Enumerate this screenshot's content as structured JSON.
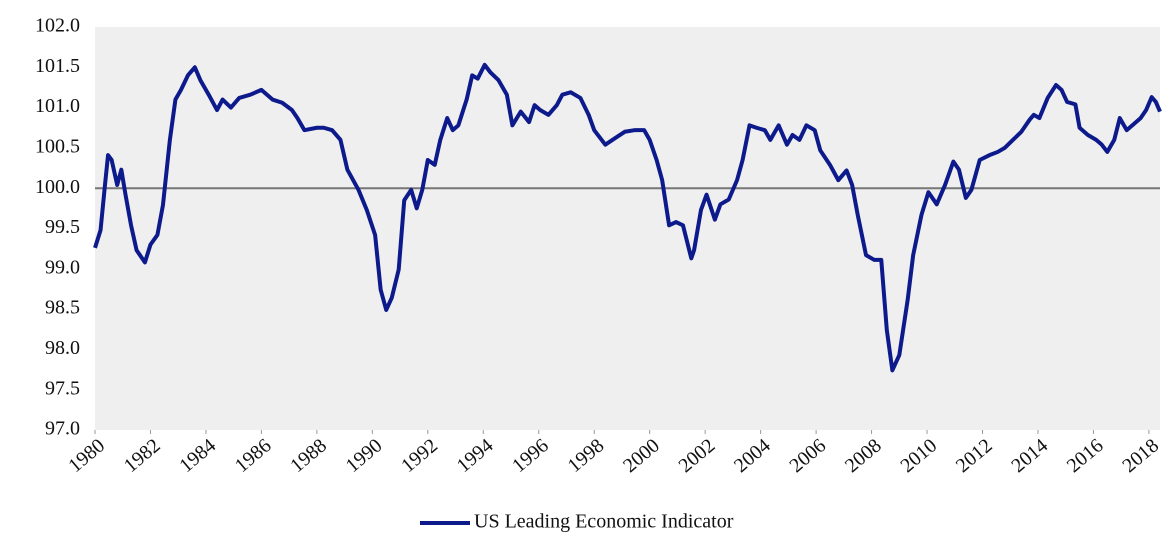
{
  "chart_data": {
    "type": "line",
    "xlim": [
      1980,
      2018.4
    ],
    "xticks": [
      1980,
      1982,
      1984,
      1986,
      1988,
      1990,
      1992,
      1994,
      1996,
      1998,
      2000,
      2002,
      2004,
      2006,
      2008,
      2010,
      2012,
      2014,
      2016,
      2018
    ],
    "ylim": [
      97,
      102
    ],
    "yticks": [
      {
        "value": 97,
        "label": "97.0"
      },
      {
        "value": 97.5,
        "label": "97.5"
      },
      {
        "value": 98,
        "label": "98.0"
      },
      {
        "value": 98.5,
        "label": "98.5"
      },
      {
        "value": 99,
        "label": "99.0"
      },
      {
        "value": 99.5,
        "label": "99.5"
      },
      {
        "value": 100,
        "label": "100.0"
      },
      {
        "value": 100.5,
        "label": "100.5"
      },
      {
        "value": 101,
        "label": "101.0"
      },
      {
        "value": 101.5,
        "label": "101.5"
      },
      {
        "value": 102,
        "label": "102.0"
      }
    ],
    "reference_line": 100,
    "legend": "bottom",
    "x": [
      1980.0,
      1980.2,
      1980.36,
      1980.47,
      1980.6,
      1980.8,
      1980.95,
      1981.1,
      1981.3,
      1981.5,
      1981.8,
      1982.0,
      1982.25,
      1982.45,
      1982.7,
      1982.9,
      1983.1,
      1983.35,
      1983.6,
      1983.8,
      1984.1,
      1984.4,
      1984.6,
      1984.9,
      1985.2,
      1985.6,
      1986.0,
      1986.4,
      1986.75,
      1987.1,
      1987.3,
      1987.55,
      1988.0,
      1988.25,
      1988.55,
      1988.85,
      1989.1,
      1989.5,
      1989.8,
      1990.1,
      1990.3,
      1990.5,
      1990.7,
      1990.95,
      1991.15,
      1991.4,
      1991.6,
      1991.8,
      1992.0,
      1992.25,
      1992.45,
      1992.7,
      1992.9,
      1993.1,
      1993.4,
      1993.6,
      1993.8,
      1994.05,
      1994.25,
      1994.55,
      1994.85,
      1995.05,
      1995.35,
      1995.65,
      1995.85,
      1996.05,
      1996.35,
      1996.65,
      1996.85,
      1997.15,
      1997.5,
      1997.8,
      1998.0,
      1998.4,
      1998.75,
      1999.1,
      1999.45,
      1999.8,
      2000.0,
      2000.25,
      2000.45,
      2000.7,
      2000.95,
      2001.2,
      2001.5,
      2001.6,
      2001.85,
      2002.05,
      2002.35,
      2002.55,
      2002.85,
      2003.15,
      2003.35,
      2003.6,
      2003.85,
      2004.15,
      2004.35,
      2004.65,
      2004.95,
      2005.15,
      2005.4,
      2005.65,
      2005.95,
      2006.15,
      2006.5,
      2006.8,
      2007.1,
      2007.3,
      2007.5,
      2007.8,
      2008.1,
      2008.35,
      2008.55,
      2008.75,
      2009.0,
      2009.3,
      2009.5,
      2009.8,
      2010.05,
      2010.35,
      2010.65,
      2010.95,
      2011.15,
      2011.4,
      2011.6,
      2011.9,
      2012.25,
      2012.55,
      2012.8,
      2013.1,
      2013.4,
      2013.7,
      2013.85,
      2014.05,
      2014.35,
      2014.65,
      2014.85,
      2015.05,
      2015.35,
      2015.5,
      2015.8,
      2016.1,
      2016.3,
      2016.5,
      2016.75,
      2016.95,
      2017.2,
      2017.4,
      2017.7,
      2017.9,
      2018.1,
      2018.25,
      2018.4
    ],
    "series": [
      {
        "name": "US Leading Economic Indicator",
        "color": "#0d1a8c",
        "values": [
          99.26,
          99.48,
          100.04,
          100.41,
          100.35,
          100.04,
          100.23,
          99.92,
          99.54,
          99.23,
          99.08,
          99.3,
          99.42,
          99.79,
          100.6,
          101.1,
          101.22,
          101.4,
          101.5,
          101.34,
          101.16,
          100.97,
          101.1,
          101.0,
          101.12,
          101.16,
          101.22,
          101.1,
          101.06,
          100.97,
          100.87,
          100.72,
          100.75,
          100.75,
          100.72,
          100.6,
          100.23,
          99.98,
          99.73,
          99.42,
          98.74,
          98.49,
          98.64,
          98.99,
          99.85,
          99.98,
          99.75,
          99.98,
          100.35,
          100.29,
          100.6,
          100.87,
          100.72,
          100.78,
          101.1,
          101.4,
          101.36,
          101.53,
          101.44,
          101.34,
          101.16,
          100.78,
          100.95,
          100.82,
          101.03,
          100.97,
          100.91,
          101.03,
          101.16,
          101.19,
          101.12,
          100.91,
          100.72,
          100.54,
          100.62,
          100.7,
          100.72,
          100.72,
          100.6,
          100.35,
          100.1,
          99.54,
          99.58,
          99.54,
          99.13,
          99.23,
          99.73,
          99.92,
          99.61,
          99.8,
          99.86,
          100.1,
          100.35,
          100.78,
          100.75,
          100.72,
          100.6,
          100.78,
          100.54,
          100.66,
          100.6,
          100.78,
          100.72,
          100.47,
          100.29,
          100.1,
          100.22,
          100.04,
          99.67,
          99.17,
          99.11,
          99.11,
          98.24,
          97.74,
          97.93,
          98.61,
          99.17,
          99.67,
          99.95,
          99.8,
          100.04,
          100.33,
          100.23,
          99.88,
          99.98,
          100.35,
          100.41,
          100.45,
          100.5,
          100.6,
          100.7,
          100.85,
          100.91,
          100.87,
          101.12,
          101.28,
          101.22,
          101.07,
          101.04,
          100.75,
          100.66,
          100.6,
          100.54,
          100.45,
          100.6,
          100.87,
          100.72,
          100.78,
          100.87,
          100.97,
          101.13,
          101.07,
          100.95
        ]
      }
    ]
  }
}
